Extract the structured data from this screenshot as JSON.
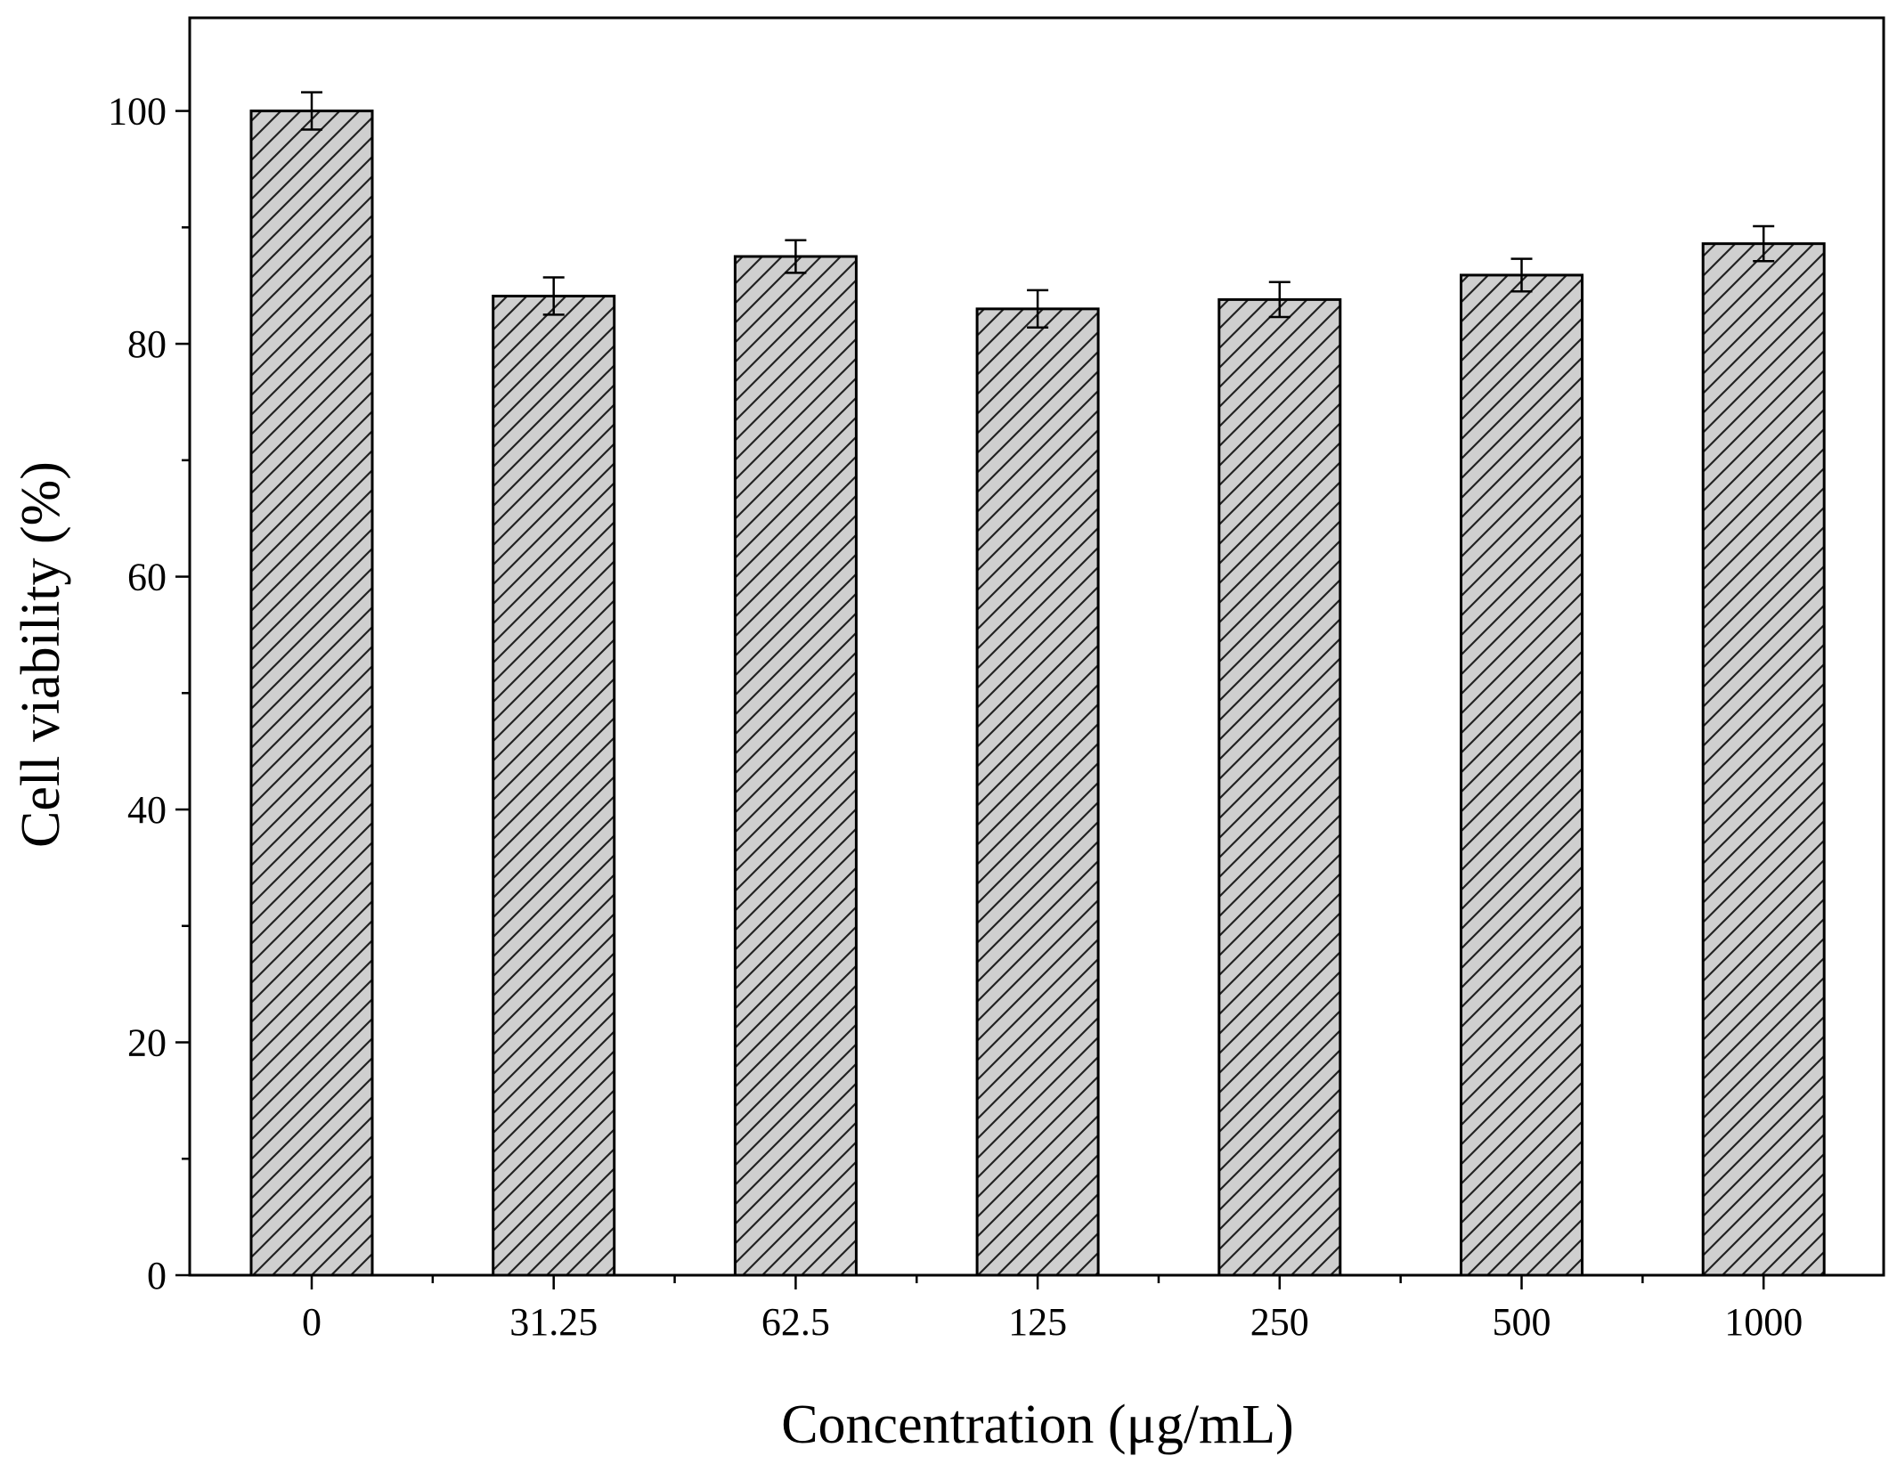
{
  "chart_data": {
    "type": "bar",
    "xlabel": "Concentration (μg/mL)",
    "ylabel": "Cell viability (%)",
    "categories": [
      "0",
      "31.25",
      "62.5",
      "125",
      "250",
      "500",
      "1000"
    ],
    "values": [
      100.0,
      84.1,
      87.5,
      83.0,
      83.8,
      85.9,
      88.6
    ],
    "errors": [
      1.6,
      1.6,
      1.4,
      1.6,
      1.5,
      1.4,
      1.5
    ],
    "ylim": [
      0,
      108
    ],
    "yticks": [
      0,
      20,
      40,
      60,
      80,
      100
    ],
    "grid": false,
    "legend": "none",
    "bar_fill": "#cfcfcf",
    "bar_hatch": "diagonal",
    "colors": {
      "bar_fill": "#cfcfcf",
      "stroke": "#000000",
      "background": "#ffffff"
    }
  }
}
